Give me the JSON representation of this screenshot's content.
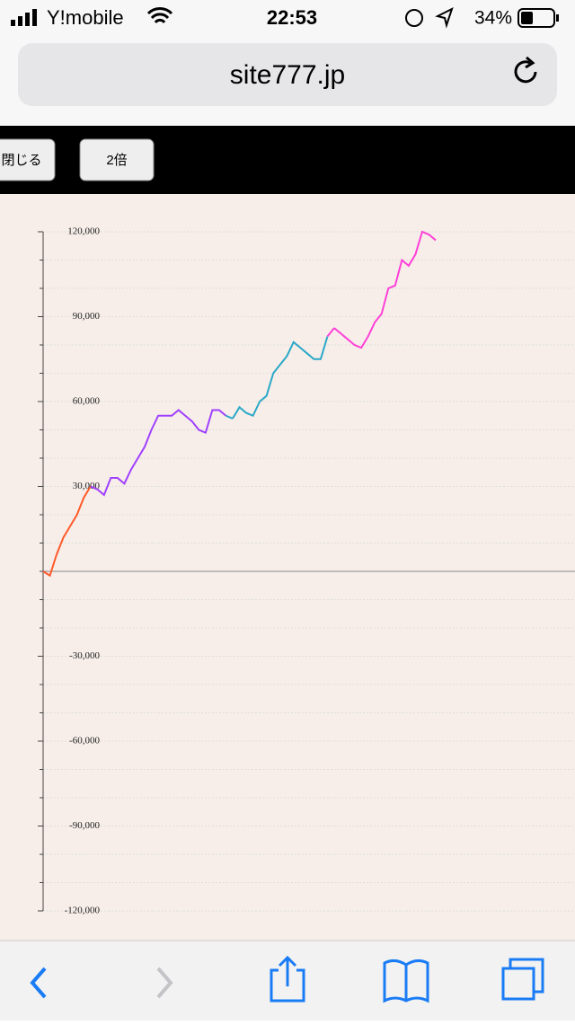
{
  "status_bar": {
    "carrier": "Y!mobile",
    "time": "22:53",
    "battery": "34%"
  },
  "address_bar": {
    "url": "site777.jp"
  },
  "toolbar": {
    "buttons": [
      "閉じる",
      "2倍"
    ]
  },
  "chart_data": {
    "type": "line",
    "ylim": [
      -120000,
      120000
    ],
    "yticks": [
      {
        "value": -120000,
        "label": "-120,000"
      },
      {
        "value": -90000,
        "label": "-90,000"
      },
      {
        "value": -60000,
        "label": "-60,000"
      },
      {
        "value": -30000,
        "label": "-30,000"
      },
      {
        "value": 30000,
        "label": "30,000"
      },
      {
        "value": 60000,
        "label": "60,000"
      },
      {
        "value": 90000,
        "label": "90,000"
      },
      {
        "value": 120000,
        "label": "120,000"
      }
    ],
    "yticks_minor": [
      -120000,
      -110000,
      -100000,
      -90000,
      -80000,
      -70000,
      -60000,
      -50000,
      -40000,
      -30000,
      -20000,
      -10000,
      0,
      10000,
      20000,
      30000,
      40000,
      50000,
      60000,
      70000,
      80000,
      90000,
      100000,
      110000,
      120000
    ],
    "grid": true,
    "series": [
      {
        "color": "#ff5a2a",
        "values": [
          0,
          -1500,
          6000,
          12000,
          16000,
          20000,
          26000,
          30000
        ]
      },
      {
        "color": "#a040ff",
        "values": [
          29000,
          27000,
          33000,
          33000,
          31000,
          36000,
          40000,
          44000,
          50000,
          55000,
          55000,
          55000,
          57000,
          55000,
          53000,
          50000,
          49000,
          57000,
          57000,
          55000
        ]
      },
      {
        "color": "#2aa8c8",
        "values": [
          54000,
          58000,
          56000,
          55000,
          60000,
          62000,
          70000,
          73000,
          76000,
          81000,
          79000,
          77000,
          75000,
          75000,
          83000
        ]
      },
      {
        "color": "#ff40d8",
        "values": [
          86000,
          84000,
          82000,
          80000,
          79000,
          83000,
          88000,
          91000,
          100000,
          101000,
          110000,
          108000,
          112000,
          120000,
          119000,
          117000
        ]
      }
    ]
  }
}
